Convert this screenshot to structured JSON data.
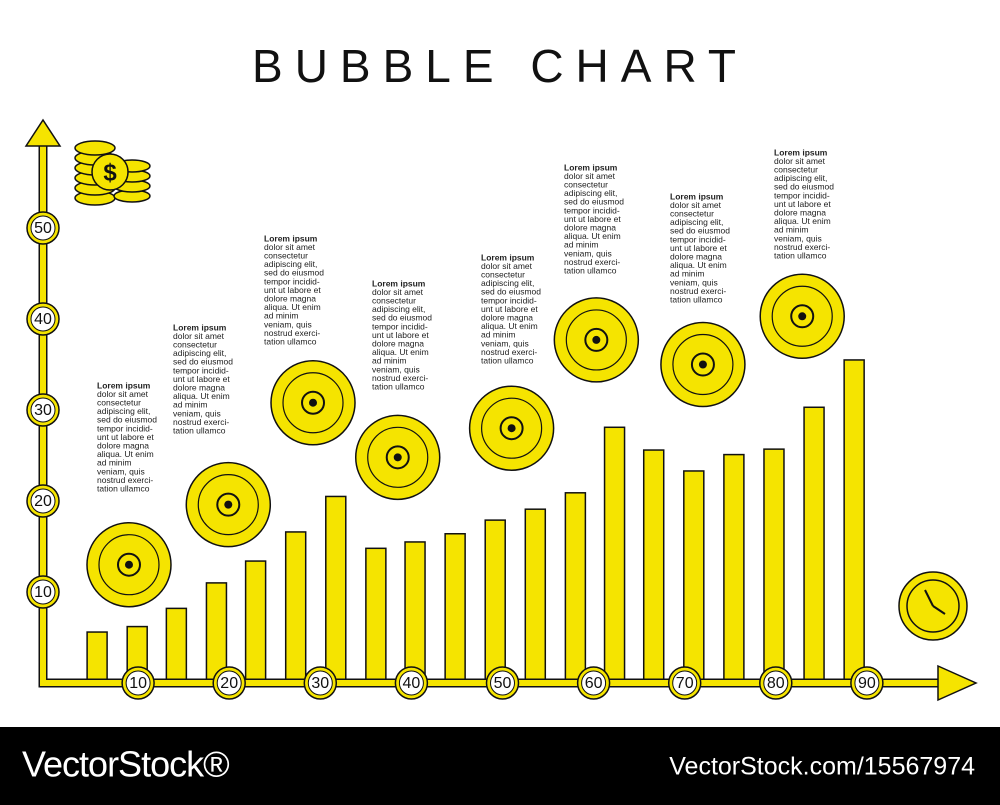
{
  "chart_data": {
    "type": "bubble",
    "title": "BUBBLE CHART",
    "xlim": [
      0,
      100
    ],
    "ylim": [
      0,
      60
    ],
    "xticks": [
      10,
      20,
      30,
      40,
      50,
      60,
      70,
      80,
      90
    ],
    "yticks": [
      10,
      20,
      30,
      40,
      50
    ],
    "series": [
      {
        "type": "bar",
        "color": "#f5e400",
        "x": [
          5.5,
          9.9,
          14.2,
          18.6,
          22.9,
          27.3,
          31.7,
          36.1,
          40.4,
          44.8,
          49.2,
          53.6,
          58.0,
          62.3,
          66.6,
          71.0,
          75.4,
          79.8,
          84.2,
          88.6
        ],
        "values": [
          5.6,
          6.2,
          8.2,
          11.0,
          13.4,
          16.6,
          20.5,
          14.8,
          15.5,
          16.4,
          17.9,
          19.1,
          20.9,
          28.1,
          25.6,
          23.3,
          25.1,
          25.7,
          30.3,
          35.5
        ]
      },
      {
        "type": "bubble",
        "color": "#f5e400",
        "x": [
          9.0,
          19.9,
          29.2,
          38.5,
          51.0,
          60.3,
          72.0,
          82.9
        ],
        "values": [
          13.0,
          19.6,
          30.8,
          24.8,
          28.0,
          37.7,
          35.0,
          40.3
        ]
      }
    ],
    "annotations": [
      {
        "title": "Lorem ipsum",
        "text": [
          "dolor sit amet",
          "consectetur",
          "adipiscing elit,",
          "sed do eiusmod",
          "tempor incidid-",
          "unt ut labore et",
          "dolore magna",
          "aliqua. Ut enim",
          "ad minim",
          "veniam, quis",
          "nostrud exerci-",
          "tation ullamco"
        ]
      },
      {
        "title": "Lorem ipsum",
        "text": [
          "dolor sit amet",
          "consectetur",
          "adipiscing elit,",
          "sed do eiusmod",
          "tempor incidid-",
          "unt ut labore et",
          "dolore magna",
          "aliqua. Ut enim",
          "ad minim",
          "veniam, quis",
          "nostrud exerci-",
          "tation ullamco"
        ]
      },
      {
        "title": "Lorem ipsum",
        "text": [
          "dolor sit amet",
          "consectetur",
          "adipiscing elit,",
          "sed do eiusmod",
          "tempor incidid-",
          "unt ut labore et",
          "dolore magna",
          "aliqua. Ut enim",
          "ad minim",
          "veniam, quis",
          "nostrud exerci-",
          "tation ullamco"
        ]
      },
      {
        "title": "Lorem ipsum",
        "text": [
          "dolor sit amet",
          "consectetur",
          "adipiscing elit,",
          "sed do eiusmod",
          "tempor incidid-",
          "unt ut labore et",
          "dolore magna",
          "aliqua. Ut enim",
          "ad minim",
          "veniam, quis",
          "nostrud exerci-",
          "tation ullamco"
        ]
      },
      {
        "title": "Lorem ipsum",
        "text": [
          "dolor sit amet",
          "consectetur",
          "adipiscing elit,",
          "sed do eiusmod",
          "tempor incidid-",
          "unt ut labore et",
          "dolore magna",
          "aliqua. Ut enim",
          "ad minim",
          "veniam, quis",
          "nostrud exerci-",
          "tation ullamco"
        ]
      },
      {
        "title": "Lorem ipsum",
        "text": [
          "dolor sit amet",
          "consectetur",
          "adipiscing elit,",
          "sed do eiusmod",
          "tempor incidid-",
          "unt ut labore et",
          "dolore magna",
          "aliqua. Ut enim",
          "ad minim",
          "veniam, quis",
          "nostrud exerci-",
          "tation ullamco"
        ]
      },
      {
        "title": "Lorem ipsum",
        "text": [
          "dolor sit amet",
          "consectetur",
          "adipiscing elit,",
          "sed do eiusmod",
          "tempor incidid-",
          "unt ut labore et",
          "dolore magna",
          "aliqua. Ut enim",
          "ad minim",
          "veniam, quis",
          "nostrud exerci-",
          "tation ullamco"
        ]
      },
      {
        "title": "Lorem ipsum",
        "text": [
          "dolor sit amet",
          "consectetur",
          "adipiscing elit,",
          "sed do eiusmod",
          "tempor incidid-",
          "unt ut labore et",
          "dolore magna",
          "aliqua. Ut enim",
          "ad minim",
          "veniam, quis",
          "nostrud exerci-",
          "tation ullamco"
        ]
      }
    ]
  },
  "footer": {
    "brand": "VectorStock®",
    "url": "VectorStock.com/15567974"
  }
}
